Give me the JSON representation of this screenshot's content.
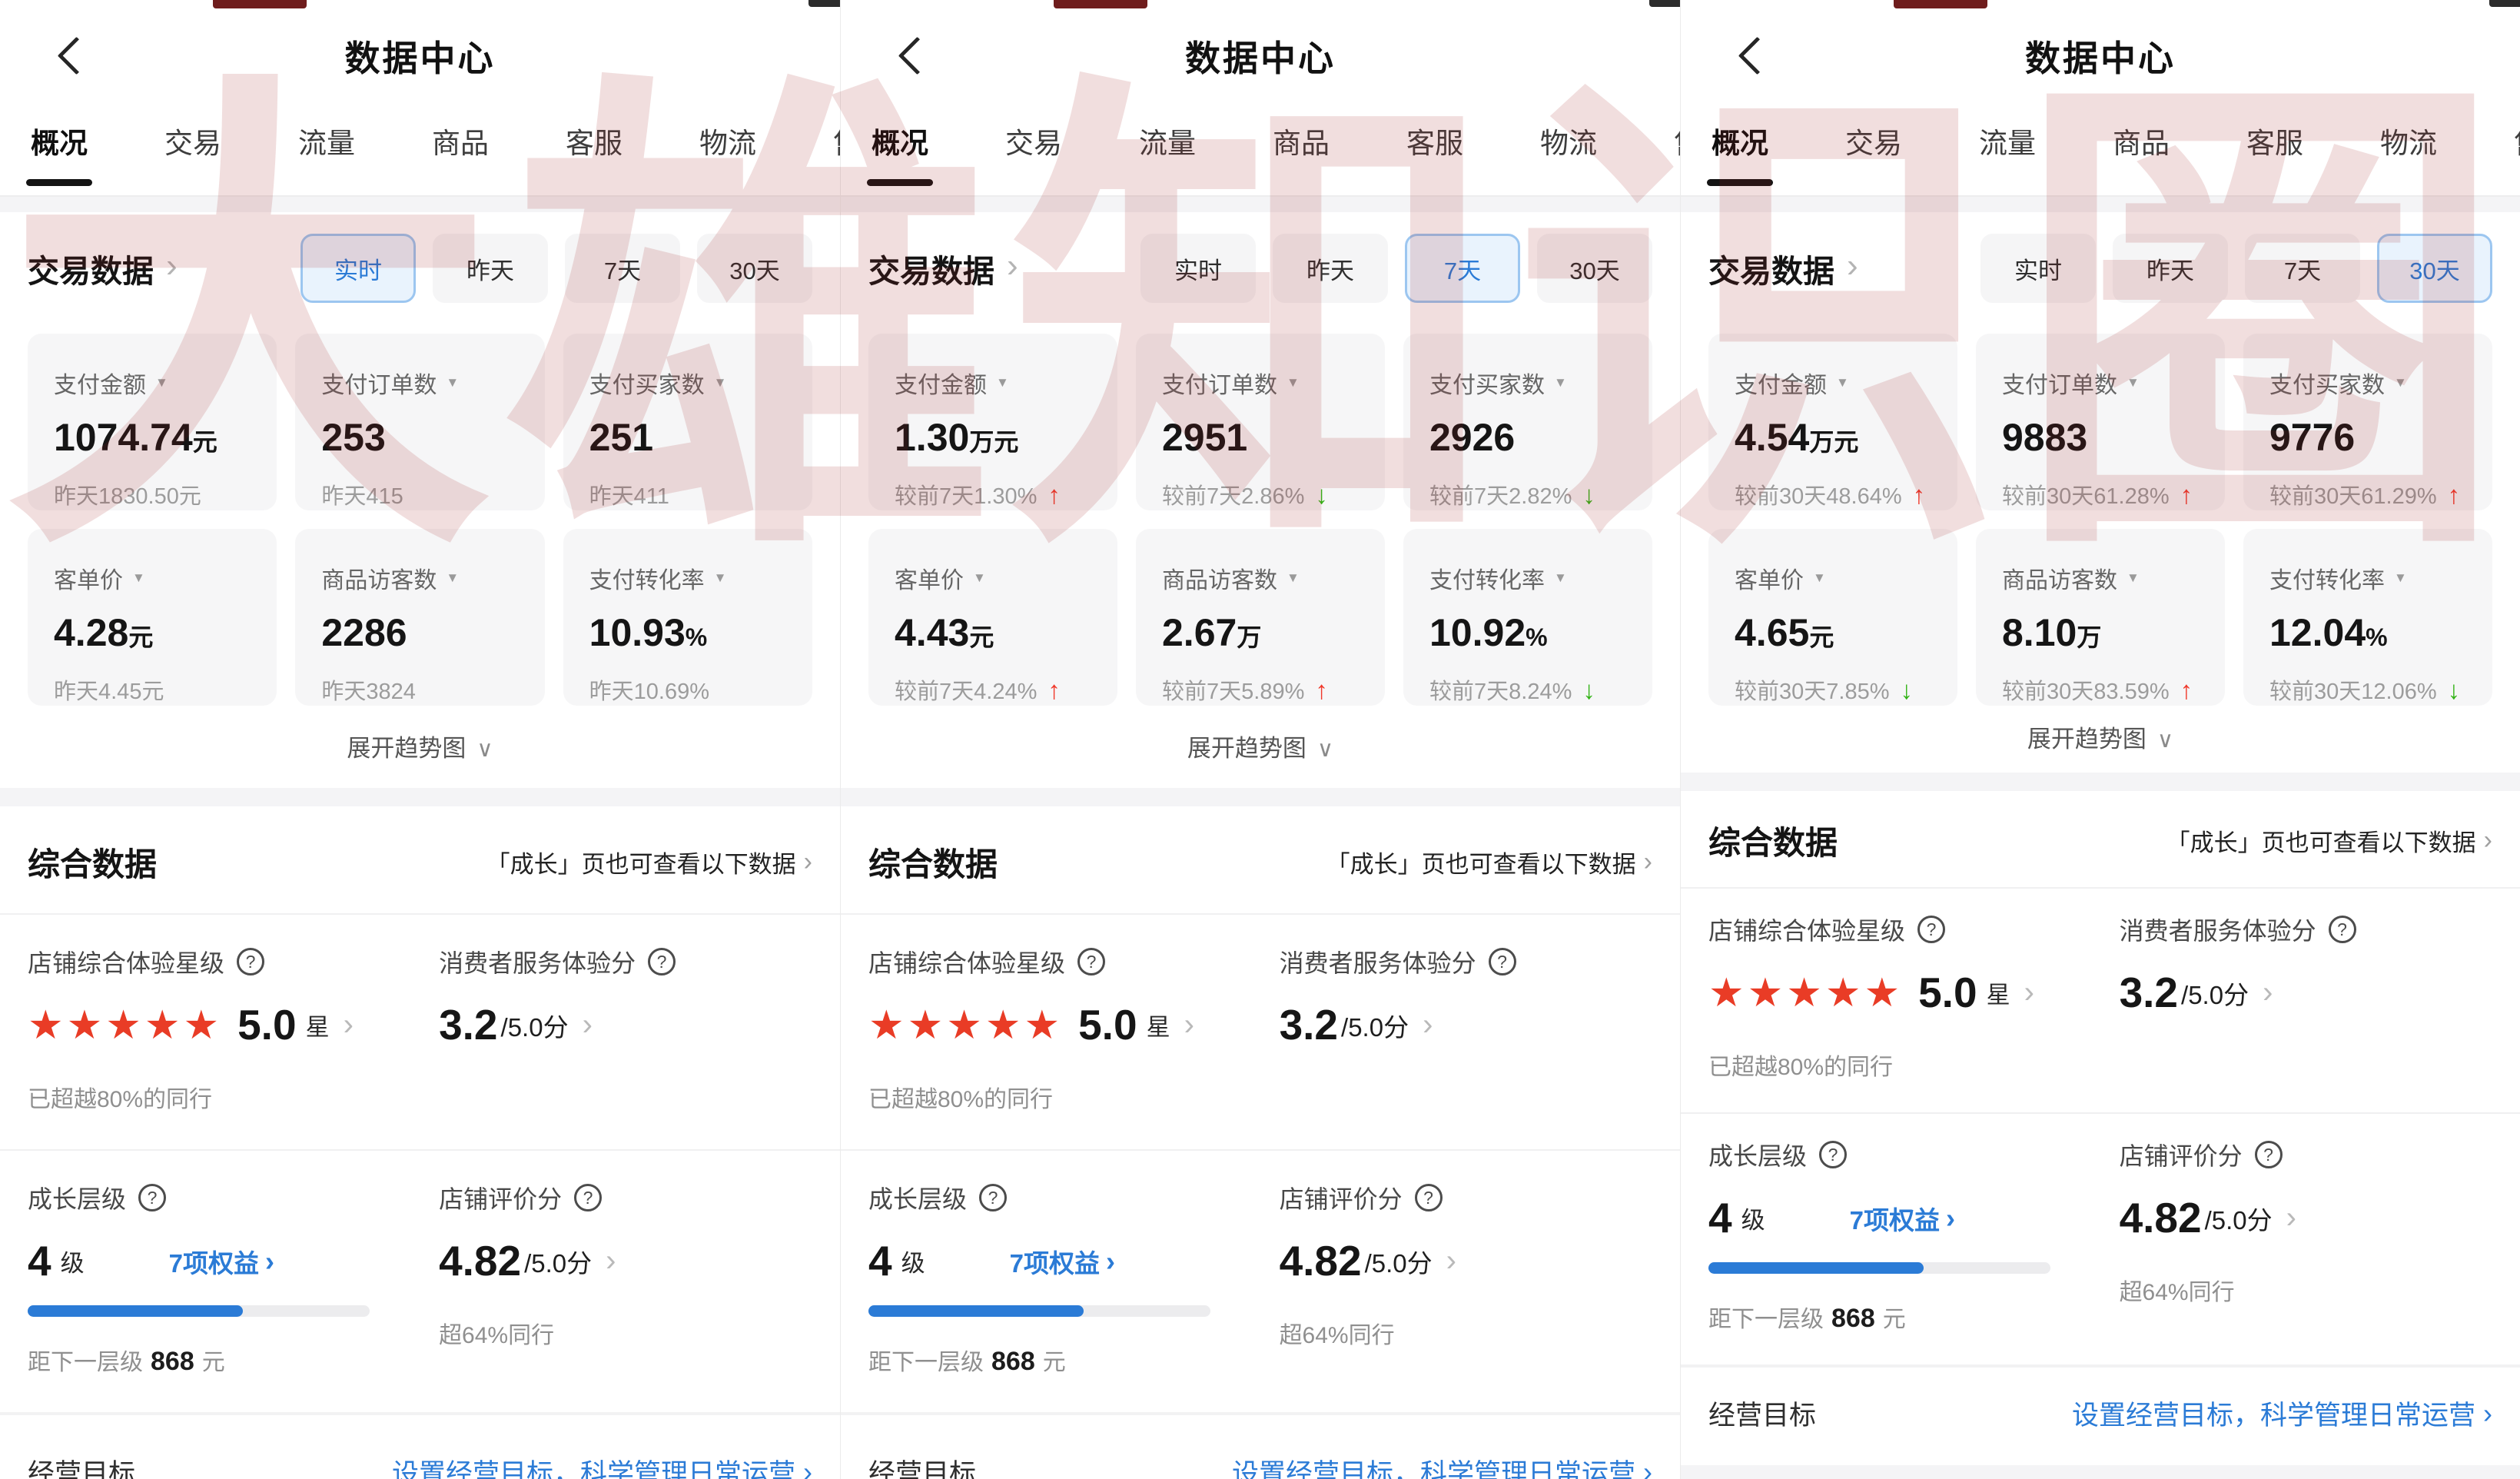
{
  "watermark": "大雄知识圈",
  "icons": {
    "dropdown": "▼",
    "chevron": "›",
    "arrow_up": "↑",
    "arrow_down": "↓",
    "question": "?",
    "stars": "★★★★★",
    "expand_caret": "∨"
  },
  "shared": {
    "title": "数据中心",
    "tabs": [
      "概况",
      "交易",
      "流量",
      "商品",
      "客服",
      "物流",
      "售"
    ],
    "trade_title": "交易数据",
    "filters": [
      "实时",
      "昨天",
      "7天",
      "30天"
    ],
    "expand": "展开趋势图",
    "comp": {
      "title": "综合数据",
      "note": "「成长」页也可查看以下数据",
      "star_label": "店铺综合体验星级",
      "star_value": "5.0",
      "star_unit": "星",
      "star_sub": "已超越80%的同行",
      "service_label": "消费者服务体验分",
      "service_value": "3.2",
      "service_suffix": "/5.0分",
      "growth_label": "成长层级",
      "growth_value": "4",
      "growth_unit": "级",
      "growth_link": "7项权益",
      "growth_sub_pre": "距下一层级",
      "growth_sub_num": "868",
      "growth_sub_suf": "元",
      "rating_label": "店铺评价分",
      "rating_value": "4.82",
      "rating_suffix": "/5.0分",
      "rating_sub": "超64%同行",
      "goal_label": "经营目标",
      "goal_link": "设置经营目标，科学管理日常运营"
    }
  },
  "panels": [
    {
      "selected_filter": "实时",
      "cards": [
        {
          "label": "支付金额",
          "value": "1074.74",
          "unit": "元",
          "sub": "昨天1830.50元",
          "trend": ""
        },
        {
          "label": "支付订单数",
          "value": "253",
          "unit": "",
          "sub": "昨天415",
          "trend": ""
        },
        {
          "label": "支付买家数",
          "value": "251",
          "unit": "",
          "sub": "昨天411",
          "trend": ""
        },
        {
          "label": "客单价",
          "value": "4.28",
          "unit": "元",
          "sub": "昨天4.45元",
          "trend": ""
        },
        {
          "label": "商品访客数",
          "value": "2286",
          "unit": "",
          "sub": "昨天3824",
          "trend": ""
        },
        {
          "label": "支付转化率",
          "value": "10.93",
          "unit": "%",
          "sub": "昨天10.69%",
          "trend": ""
        }
      ]
    },
    {
      "selected_filter": "7天",
      "cards": [
        {
          "label": "支付金额",
          "value": "1.30",
          "unit": "万元",
          "sub": "较前7天1.30%",
          "trend": "up"
        },
        {
          "label": "支付订单数",
          "value": "2951",
          "unit": "",
          "sub": "较前7天2.86%",
          "trend": "down"
        },
        {
          "label": "支付买家数",
          "value": "2926",
          "unit": "",
          "sub": "较前7天2.82%",
          "trend": "down"
        },
        {
          "label": "客单价",
          "value": "4.43",
          "unit": "元",
          "sub": "较前7天4.24%",
          "trend": "up"
        },
        {
          "label": "商品访客数",
          "value": "2.67",
          "unit": "万",
          "sub": "较前7天5.89%",
          "trend": "up"
        },
        {
          "label": "支付转化率",
          "value": "10.92",
          "unit": "%",
          "sub": "较前7天8.24%",
          "trend": "down"
        }
      ]
    },
    {
      "selected_filter": "30天",
      "cards": [
        {
          "label": "支付金额",
          "value": "4.54",
          "unit": "万元",
          "sub": "较前30天48.64%",
          "trend": "up"
        },
        {
          "label": "支付订单数",
          "value": "9883",
          "unit": "",
          "sub": "较前30天61.28%",
          "trend": "up"
        },
        {
          "label": "支付买家数",
          "value": "9776",
          "unit": "",
          "sub": "较前30天61.29%",
          "trend": "up"
        },
        {
          "label": "客单价",
          "value": "4.65",
          "unit": "元",
          "sub": "较前30天7.85%",
          "trend": "down"
        },
        {
          "label": "商品访客数",
          "value": "8.10",
          "unit": "万",
          "sub": "较前30天83.59%",
          "trend": "up"
        },
        {
          "label": "支付转化率",
          "value": "12.04",
          "unit": "%",
          "sub": "较前30天12.06%",
          "trend": "down"
        }
      ]
    }
  ]
}
